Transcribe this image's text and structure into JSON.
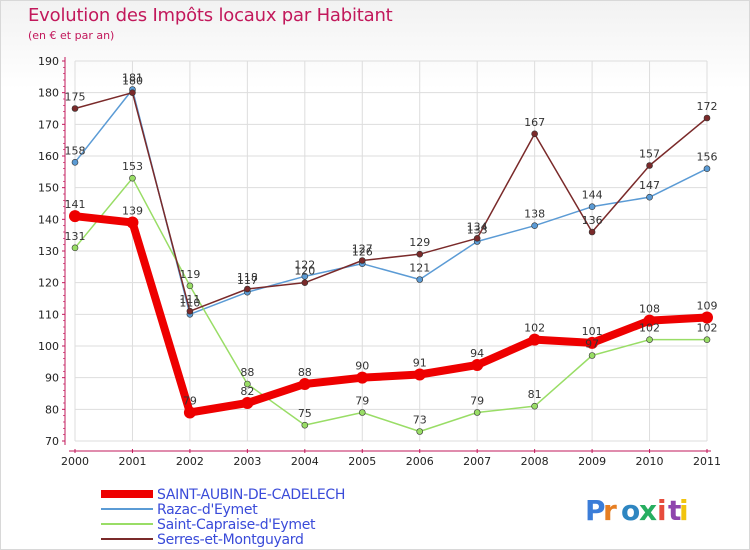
{
  "title": "Evolution des Impôts locaux par Habitant",
  "subtitle": "(en € et par an)",
  "logo": "Proxiti",
  "chart_data": {
    "type": "line",
    "title": "Evolution des Impôts locaux par Habitant",
    "subtitle": "(en € et par an)",
    "xlabel": "",
    "ylabel": "",
    "x": [
      "2000",
      "2001",
      "2002",
      "2003",
      "2004",
      "2005",
      "2006",
      "2007",
      "2008",
      "2009",
      "2010",
      "2011"
    ],
    "ylim": [
      70,
      190
    ],
    "yticks": [
      70,
      80,
      90,
      100,
      110,
      120,
      130,
      140,
      150,
      160,
      170,
      180,
      190
    ],
    "grid": true,
    "legend_position": "bottom-left",
    "series": [
      {
        "name": "SAINT-AUBIN-DE-CADELECH",
        "color": "#ee0000",
        "width": 8,
        "values": [
          141,
          139,
          79,
          82,
          88,
          90,
          91,
          94,
          102,
          101,
          108,
          109
        ]
      },
      {
        "name": "Razac-d'Eymet",
        "color": "#5b9bd5",
        "width": 1.5,
        "values": [
          158,
          181,
          110,
          117,
          122,
          126,
          121,
          133,
          138,
          144,
          147,
          156
        ]
      },
      {
        "name": "Saint-Capraise-d'Eymet",
        "color": "#99dd66",
        "width": 1.5,
        "values": [
          131,
          153,
          119,
          88,
          75,
          79,
          73,
          79,
          81,
          97,
          102,
          102
        ]
      },
      {
        "name": "Serres-et-Montguyard",
        "color": "#7a2a2a",
        "width": 1.5,
        "values": [
          175,
          180,
          111,
          118,
          120,
          127,
          129,
          134,
          167,
          136,
          157,
          172
        ]
      }
    ]
  }
}
